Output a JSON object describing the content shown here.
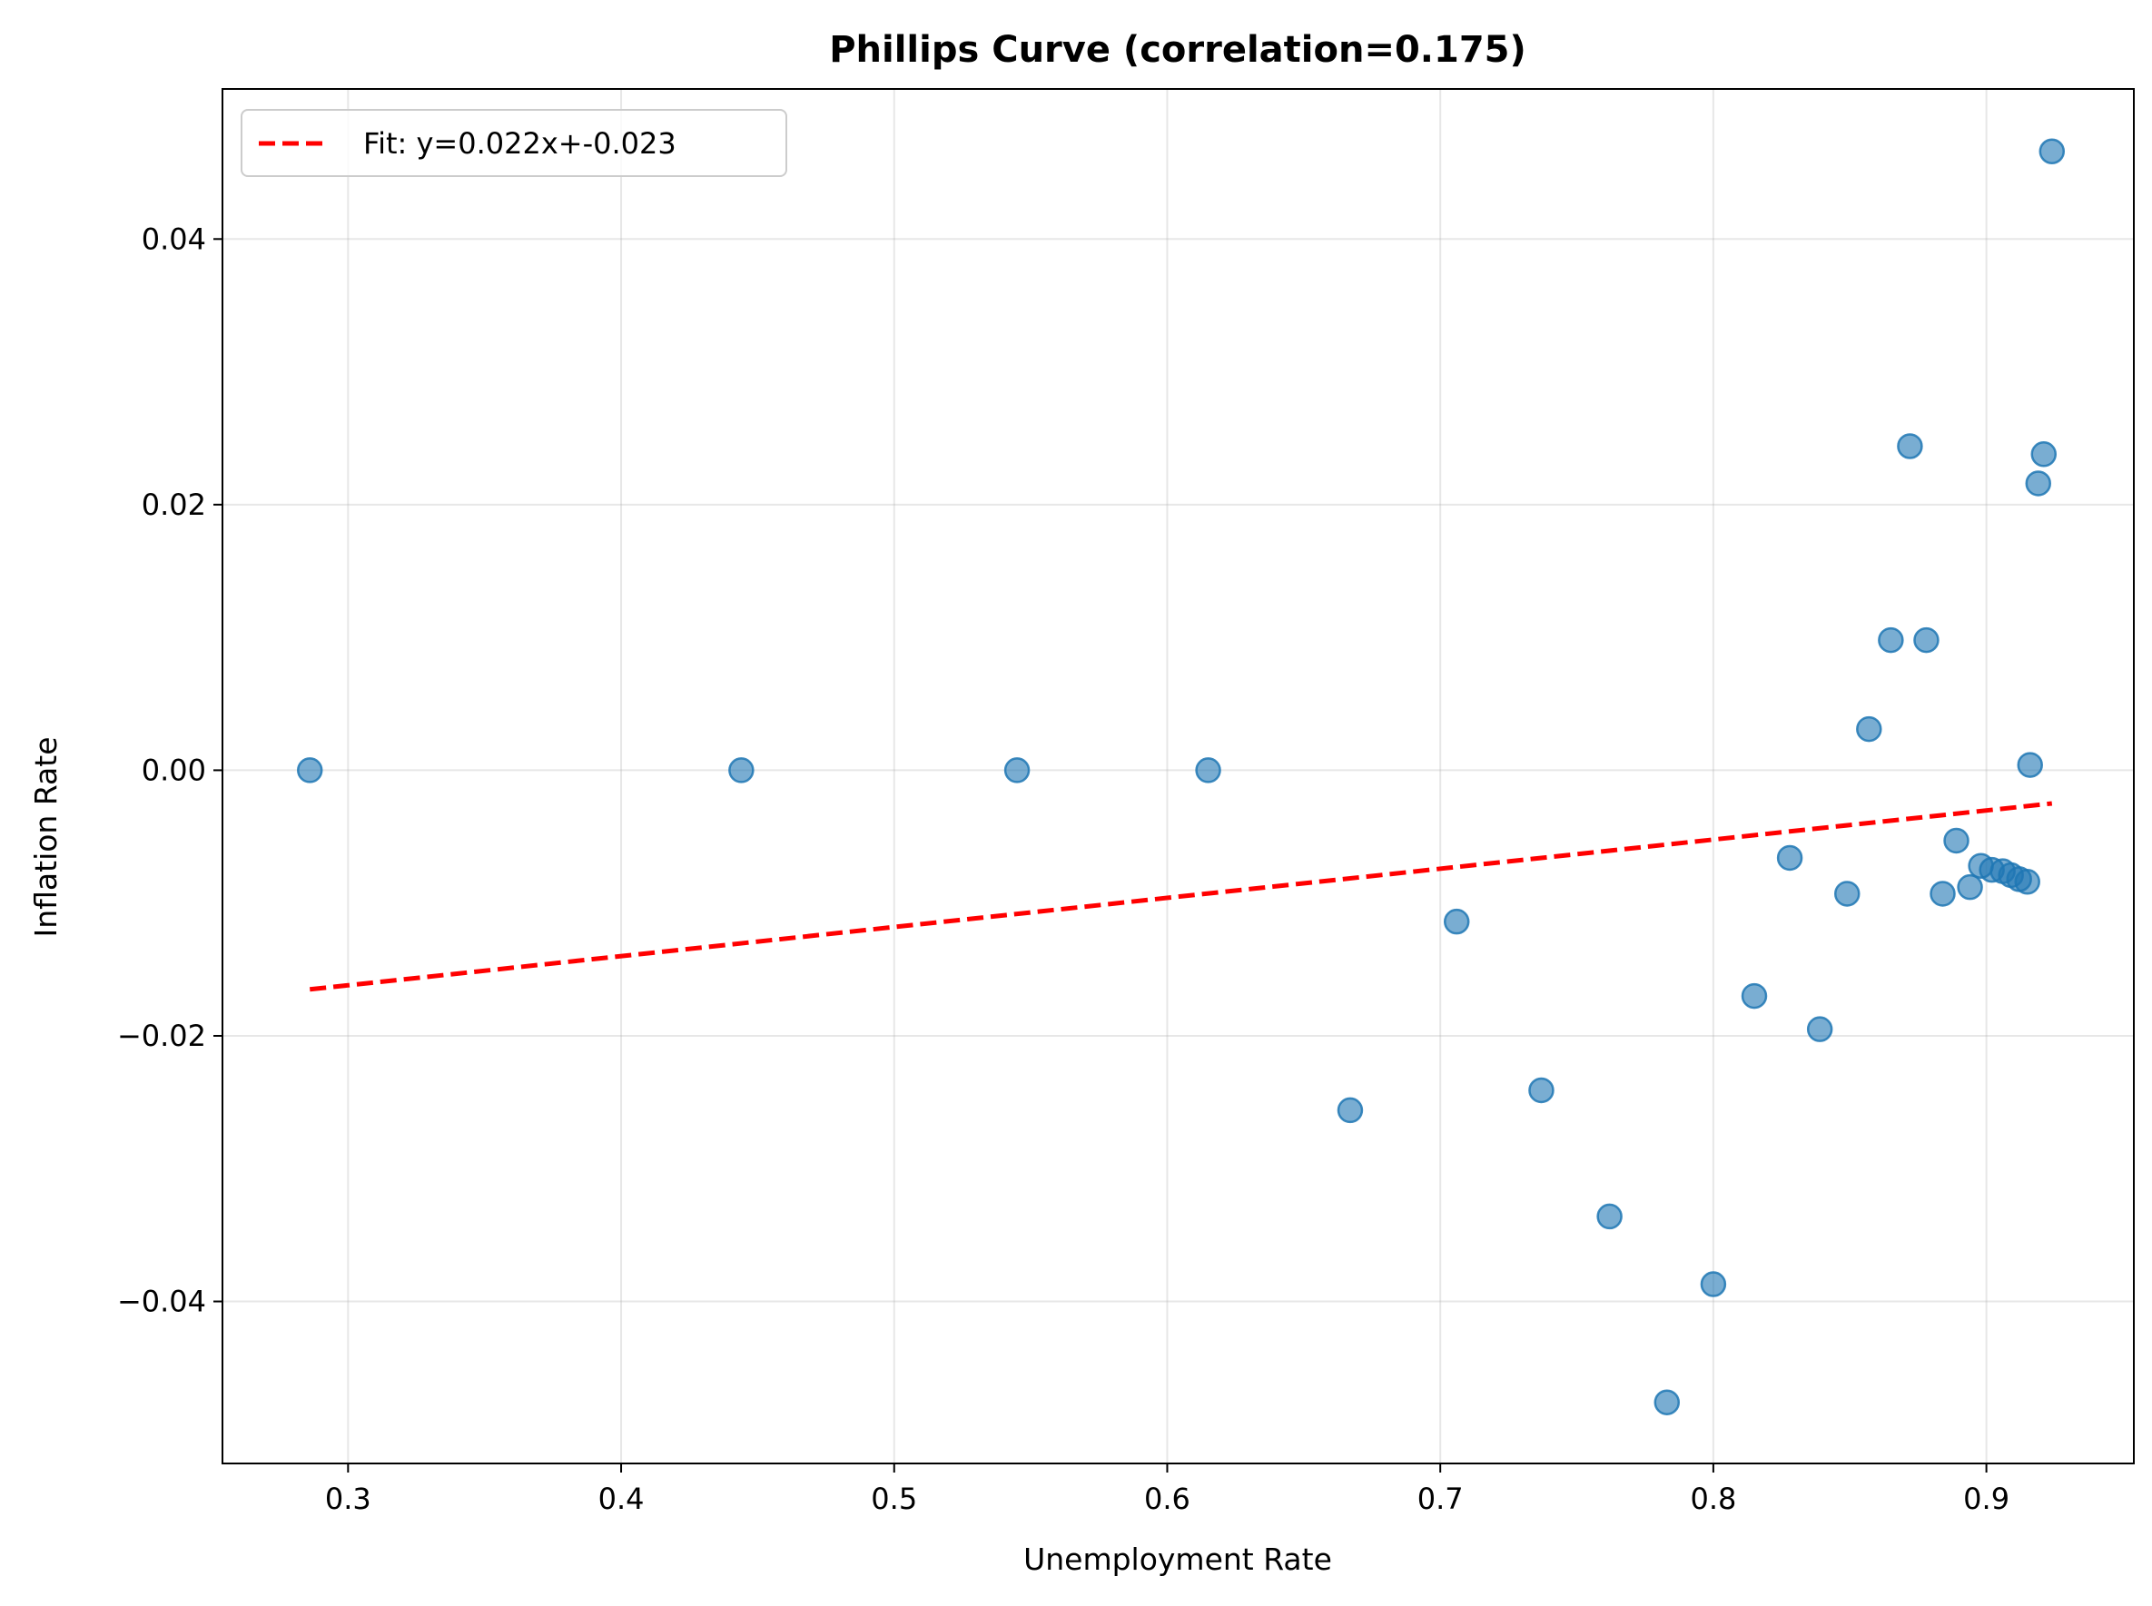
{
  "chart_data": {
    "type": "scatter",
    "title": "Phillips Curve (correlation=0.175)",
    "xlabel": "Unemployment Rate",
    "ylabel": "Inflation Rate",
    "xlim": [
      0.254,
      0.954
    ],
    "ylim": [
      -0.0522,
      0.0513
    ],
    "xticks": [
      0.3,
      0.4,
      0.5,
      0.6,
      0.7,
      0.8,
      0.9
    ],
    "xtick_labels": [
      "0.3",
      "0.4",
      "0.5",
      "0.6",
      "0.7",
      "0.8",
      "0.9"
    ],
    "yticks": [
      -0.04,
      -0.02,
      0.0,
      0.02,
      0.04
    ],
    "ytick_labels": [
      "−0.04",
      "−0.02",
      "0.00",
      "0.02",
      "0.04"
    ],
    "grid": true,
    "legend_position": "top-left",
    "series": [
      {
        "kind": "scatter",
        "color": "#1f77b4",
        "opacity": 0.6,
        "points": [
          [
            0.286,
            0.0
          ],
          [
            0.444,
            0.0
          ],
          [
            0.545,
            0.0
          ],
          [
            0.615,
            0.0
          ],
          [
            0.667,
            -0.0256
          ],
          [
            0.706,
            -0.0114
          ],
          [
            0.737,
            -0.0241
          ],
          [
            0.762,
            -0.0336
          ],
          [
            0.783,
            -0.0476
          ],
          [
            0.8,
            -0.0387
          ],
          [
            0.815,
            -0.017
          ],
          [
            0.828,
            -0.0066
          ],
          [
            0.839,
            -0.0195
          ],
          [
            0.849,
            -0.0093
          ],
          [
            0.857,
            0.0031
          ],
          [
            0.865,
            0.0098
          ],
          [
            0.872,
            0.0244
          ],
          [
            0.878,
            0.0098
          ],
          [
            0.884,
            -0.0093
          ],
          [
            0.889,
            -0.0053
          ],
          [
            0.894,
            -0.0088
          ],
          [
            0.898,
            -0.0072
          ],
          [
            0.902,
            -0.0075
          ],
          [
            0.906,
            -0.0076
          ],
          [
            0.909,
            -0.0079
          ],
          [
            0.912,
            -0.0082
          ],
          [
            0.915,
            -0.0084
          ],
          [
            0.916,
            0.0004
          ],
          [
            0.919,
            0.0216
          ],
          [
            0.921,
            0.0238
          ],
          [
            0.924,
            0.0466
          ]
        ]
      },
      {
        "kind": "line",
        "name": "Fit: y=0.022x+-0.023",
        "color": "#ff0000",
        "dashed": true,
        "x": [
          0.286,
          0.924
        ],
        "y": [
          -0.0165,
          -0.0025
        ]
      }
    ]
  }
}
